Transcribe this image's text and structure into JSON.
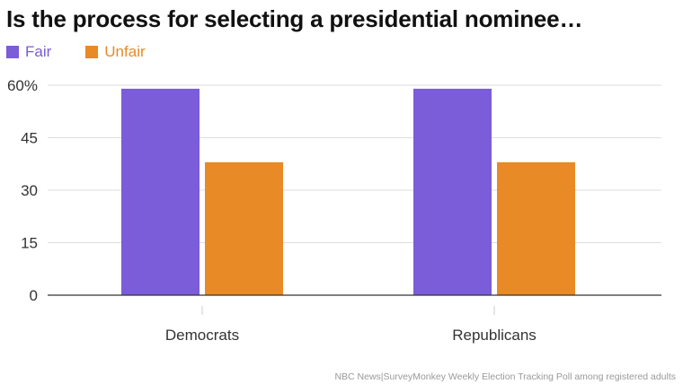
{
  "chart_data": {
    "type": "bar",
    "title": "Is the process for selecting a presidential nominee…",
    "categories": [
      "Democrats",
      "Republicans"
    ],
    "series": [
      {
        "name": "Fair",
        "values": [
          59,
          59
        ],
        "color": "#7b5cd9"
      },
      {
        "name": "Unfair",
        "values": [
          38,
          38
        ],
        "color": "#e88a25"
      }
    ],
    "ylim": [
      0,
      60
    ],
    "yticks": [
      0,
      15,
      30,
      45,
      60
    ],
    "ytick_labels": [
      "0",
      "15",
      "30",
      "45",
      "60%"
    ],
    "xlabel": "",
    "ylabel": "",
    "grid": true,
    "legend_position": "top-left"
  },
  "source": "NBC News|SurveyMonkey Weekly Election Tracking Poll among registered adults"
}
